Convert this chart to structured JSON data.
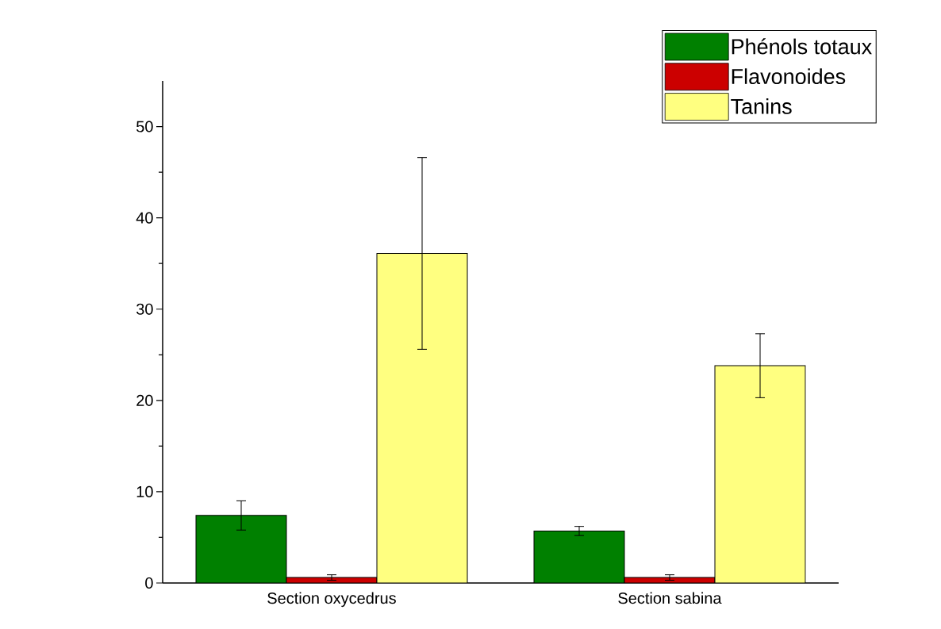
{
  "chart_data": {
    "type": "bar",
    "categories": [
      "Section oxycedrus",
      "Section sabina"
    ],
    "series": [
      {
        "name": "Phénols totaux",
        "color": "#008000",
        "values": [
          7.4,
          5.7
        ],
        "errors": [
          1.6,
          0.5
        ]
      },
      {
        "name": "Flavonoides",
        "color": "#cc0000",
        "values": [
          0.6,
          0.6
        ],
        "errors": [
          0.3,
          0.3
        ]
      },
      {
        "name": "Tanins",
        "color": "#ffff80",
        "values": [
          36.1,
          23.8
        ],
        "errors": [
          10.5,
          3.5
        ]
      }
    ],
    "ylim": [
      0,
      55
    ],
    "yticks": [
      0,
      10,
      20,
      30,
      40,
      50
    ],
    "legend": "top right"
  }
}
